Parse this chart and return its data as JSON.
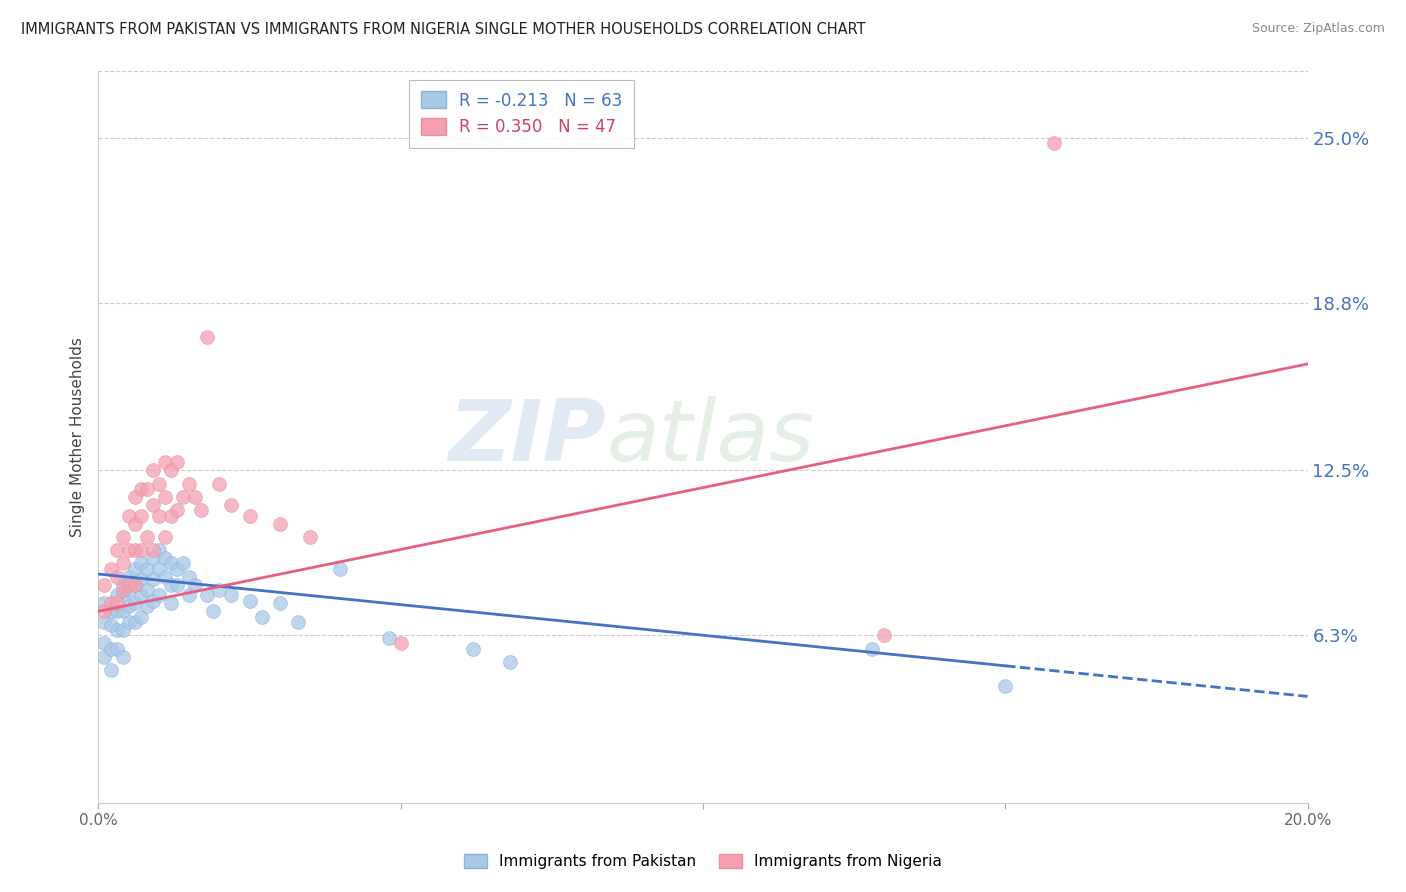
{
  "title": "IMMIGRANTS FROM PAKISTAN VS IMMIGRANTS FROM NIGERIA SINGLE MOTHER HOUSEHOLDS CORRELATION CHART",
  "source": "Source: ZipAtlas.com",
  "ylabel": "Single Mother Households",
  "ytick_labels": [
    "6.3%",
    "12.5%",
    "18.8%",
    "25.0%"
  ],
  "ytick_values": [
    0.063,
    0.125,
    0.188,
    0.25
  ],
  "xlim": [
    0.0,
    0.2
  ],
  "ylim": [
    0.0,
    0.275
  ],
  "legend_label_pakistan": "Immigrants from Pakistan",
  "legend_label_nigeria": "Immigrants from Nigeria",
  "color_pakistan": "#a8c8e8",
  "color_nigeria": "#f4a0b0",
  "color_trendline_pakistan": "#4472c4",
  "color_trendline_nigeria": "#e86080",
  "watermark_zip": "ZIP",
  "watermark_atlas": "atlas",
  "pakistan_R": -0.213,
  "pakistan_N": 63,
  "nigeria_R": 0.35,
  "nigeria_N": 47,
  "pak_trend_x0": 0.0,
  "pak_trend_y0": 0.086,
  "pak_trend_x1": 0.2,
  "pak_trend_y1": 0.04,
  "nig_trend_x0": 0.0,
  "nig_trend_y0": 0.072,
  "nig_trend_x1": 0.2,
  "nig_trend_y1": 0.165,
  "pakistan_x": [
    0.001,
    0.001,
    0.001,
    0.001,
    0.002,
    0.002,
    0.002,
    0.002,
    0.003,
    0.003,
    0.003,
    0.003,
    0.004,
    0.004,
    0.004,
    0.004,
    0.004,
    0.005,
    0.005,
    0.005,
    0.005,
    0.006,
    0.006,
    0.006,
    0.006,
    0.007,
    0.007,
    0.007,
    0.007,
    0.008,
    0.008,
    0.008,
    0.009,
    0.009,
    0.009,
    0.01,
    0.01,
    0.01,
    0.011,
    0.011,
    0.012,
    0.012,
    0.012,
    0.013,
    0.013,
    0.014,
    0.015,
    0.015,
    0.016,
    0.018,
    0.019,
    0.02,
    0.022,
    0.025,
    0.027,
    0.03,
    0.033,
    0.04,
    0.048,
    0.062,
    0.068,
    0.128,
    0.15
  ],
  "pakistan_y": [
    0.075,
    0.068,
    0.06,
    0.055,
    0.072,
    0.067,
    0.058,
    0.05,
    0.078,
    0.072,
    0.065,
    0.058,
    0.082,
    0.078,
    0.072,
    0.065,
    0.055,
    0.085,
    0.08,
    0.074,
    0.068,
    0.088,
    0.082,
    0.075,
    0.068,
    0.09,
    0.084,
    0.078,
    0.07,
    0.088,
    0.08,
    0.074,
    0.092,
    0.084,
    0.076,
    0.095,
    0.088,
    0.078,
    0.092,
    0.085,
    0.09,
    0.082,
    0.075,
    0.088,
    0.082,
    0.09,
    0.085,
    0.078,
    0.082,
    0.078,
    0.072,
    0.08,
    0.078,
    0.076,
    0.07,
    0.075,
    0.068,
    0.088,
    0.062,
    0.058,
    0.053,
    0.058,
    0.044
  ],
  "nigeria_x": [
    0.001,
    0.001,
    0.002,
    0.002,
    0.003,
    0.003,
    0.003,
    0.004,
    0.004,
    0.004,
    0.005,
    0.005,
    0.005,
    0.006,
    0.006,
    0.006,
    0.006,
    0.007,
    0.007,
    0.007,
    0.008,
    0.008,
    0.009,
    0.009,
    0.009,
    0.01,
    0.01,
    0.011,
    0.011,
    0.011,
    0.012,
    0.012,
    0.013,
    0.013,
    0.014,
    0.015,
    0.016,
    0.017,
    0.018,
    0.02,
    0.022,
    0.025,
    0.03,
    0.035,
    0.05,
    0.13,
    0.158
  ],
  "nigeria_y": [
    0.082,
    0.072,
    0.088,
    0.075,
    0.095,
    0.085,
    0.075,
    0.1,
    0.09,
    0.08,
    0.108,
    0.095,
    0.082,
    0.115,
    0.105,
    0.095,
    0.082,
    0.118,
    0.108,
    0.095,
    0.118,
    0.1,
    0.125,
    0.112,
    0.095,
    0.12,
    0.108,
    0.128,
    0.115,
    0.1,
    0.125,
    0.108,
    0.128,
    0.11,
    0.115,
    0.12,
    0.115,
    0.11,
    0.175,
    0.12,
    0.112,
    0.108,
    0.105,
    0.1,
    0.06,
    0.063,
    0.248
  ]
}
